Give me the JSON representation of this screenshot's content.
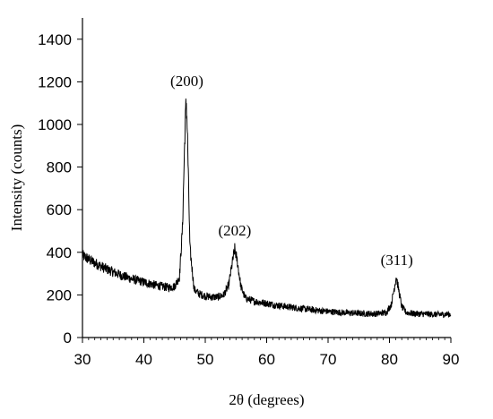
{
  "chart_data": {
    "type": "line",
    "title": "",
    "xlabel": "2θ (degrees)",
    "ylabel": "Intensity (counts)",
    "xlim": [
      30,
      90
    ],
    "ylim": [
      0,
      1500
    ],
    "x_ticks": [
      "30",
      "40",
      "50",
      "60",
      "70",
      "80",
      "90"
    ],
    "y_ticks": [
      "0",
      "200",
      "400",
      "600",
      "800",
      "1000",
      "1200",
      "1400"
    ],
    "grid": false,
    "legend": "none",
    "series": [
      {
        "color": "#000000",
        "x": [
          30,
          32,
          34,
          36,
          38,
          40,
          42,
          44,
          45,
          45.8,
          46.3,
          46.7,
          46.9,
          47.1,
          47.5,
          48.2,
          49,
          50,
          51,
          52,
          53,
          53.8,
          54.4,
          54.8,
          55.2,
          55.8,
          56.5,
          58,
          60,
          62,
          64,
          66,
          68,
          70,
          72,
          74,
          76,
          78,
          79.5,
          80.3,
          80.8,
          81.1,
          81.4,
          82,
          82.7,
          84,
          86,
          88,
          90
        ],
        "y": [
          385,
          350,
          320,
          295,
          275,
          260,
          245,
          235,
          240,
          285,
          520,
          980,
          1120,
          950,
          420,
          225,
          205,
          195,
          190,
          190,
          200,
          245,
          350,
          415,
          360,
          240,
          185,
          170,
          160,
          150,
          142,
          135,
          128,
          122,
          118,
          115,
          112,
          112,
          118,
          155,
          235,
          285,
          240,
          145,
          118,
          112,
          110,
          108,
          110
        ]
      }
    ],
    "annotations": [
      {
        "text": "(200)",
        "x": 47,
        "y": 1180
      },
      {
        "text": "(202)",
        "x": 54.8,
        "y": 480
      },
      {
        "text": "(311)",
        "x": 81.2,
        "y": 340
      }
    ]
  }
}
